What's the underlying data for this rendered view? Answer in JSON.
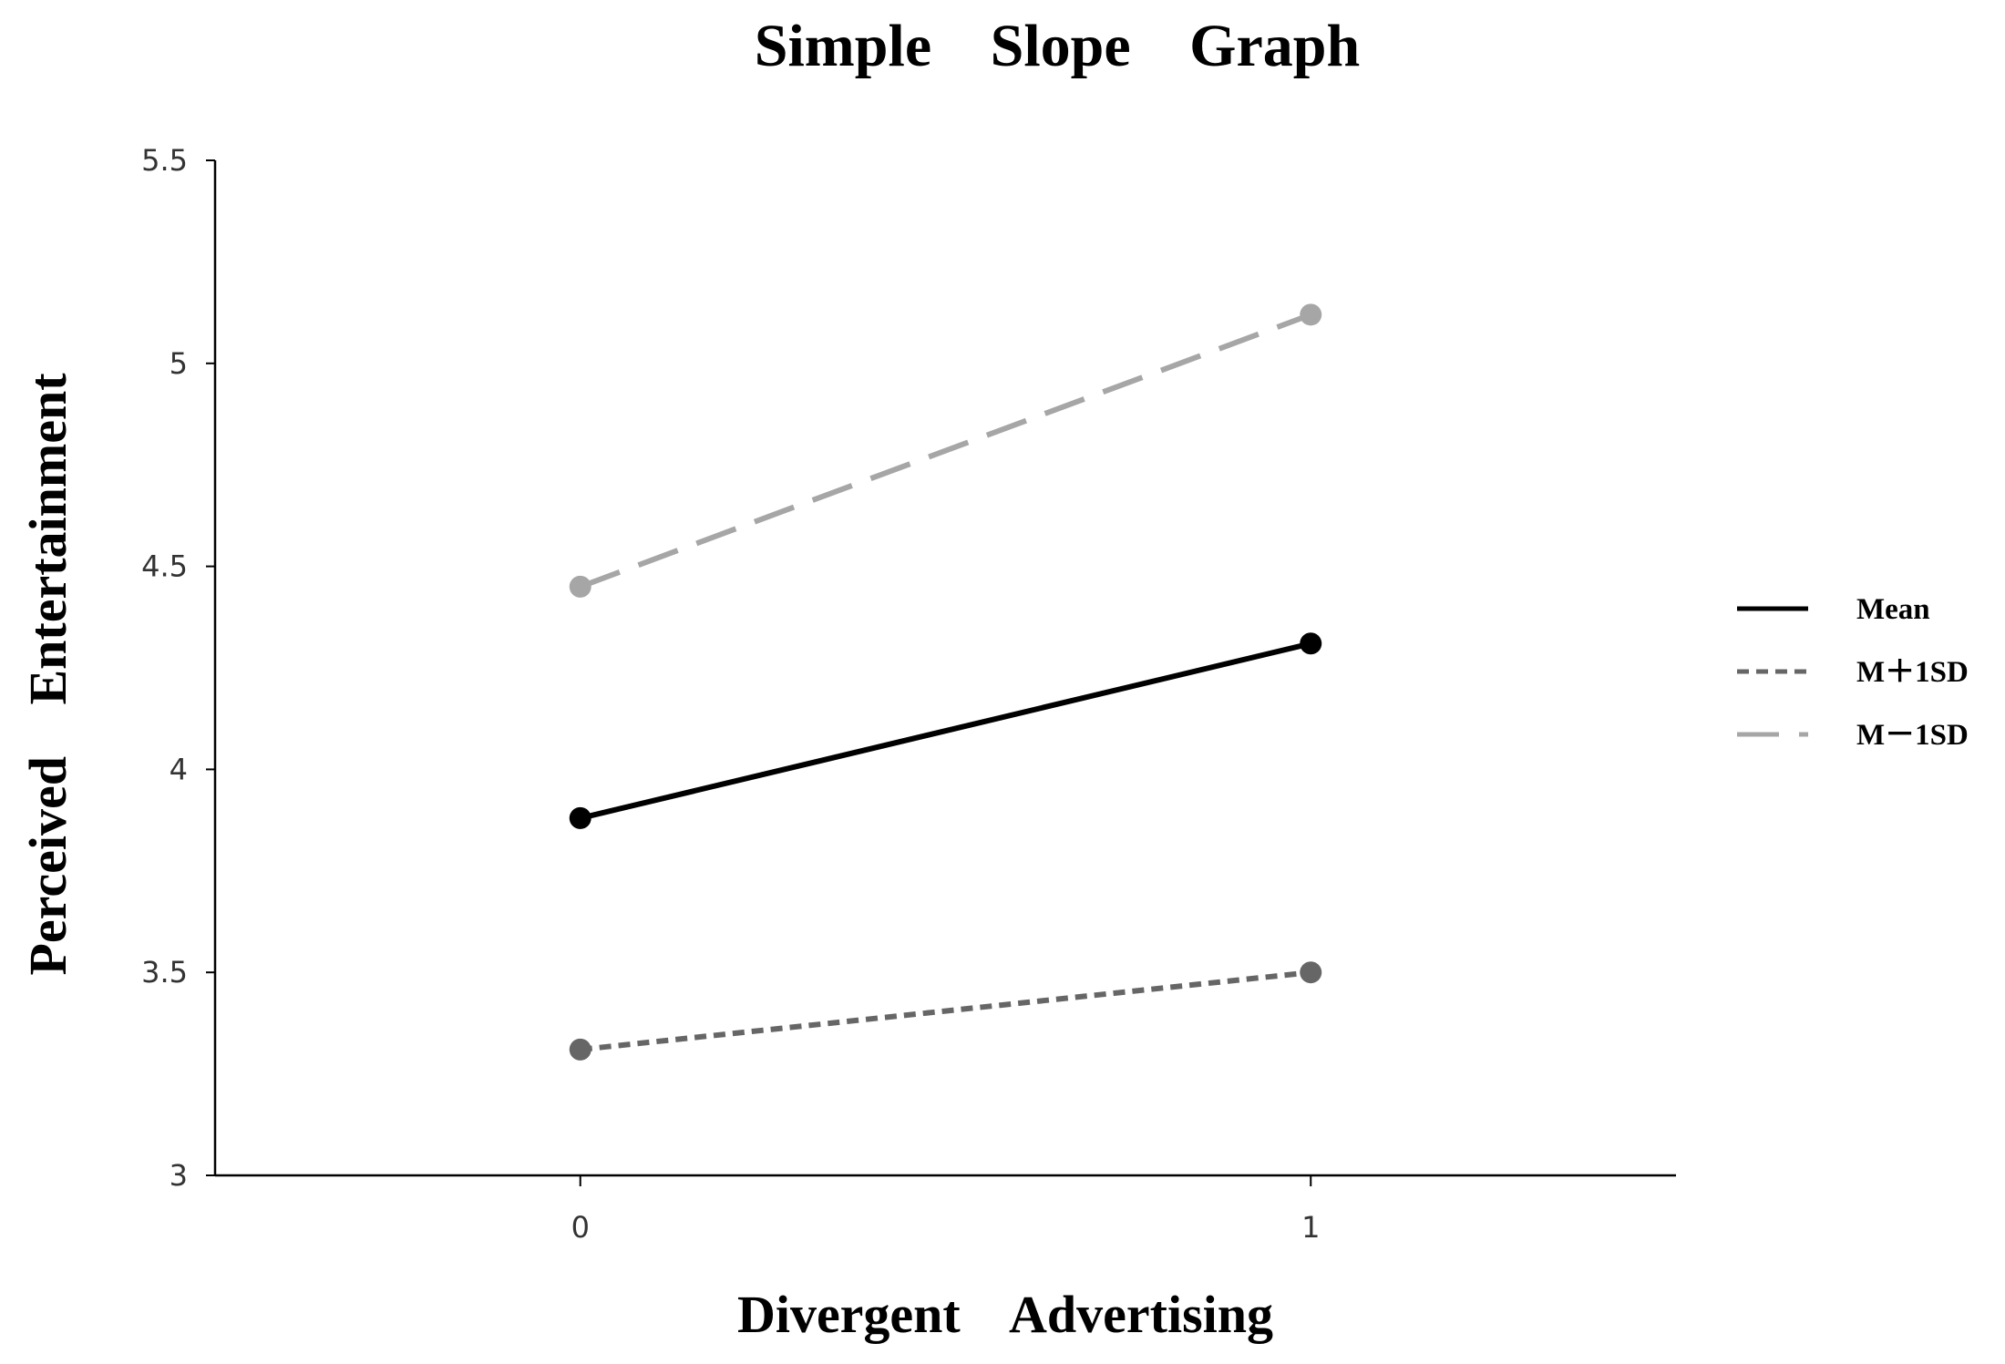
{
  "chart_data": {
    "type": "line",
    "title": "Simple Slope Graph",
    "xlabel": "Divergent Advertising",
    "ylabel": "Perceived Entertainment",
    "x": [
      0,
      1
    ],
    "x_tick_labels": [
      "0",
      "1"
    ],
    "xlim": [
      -0.5,
      1.5
    ],
    "ylim": [
      3,
      5.5
    ],
    "y_ticks": [
      3,
      3.5,
      4,
      4.5,
      5,
      5.5
    ],
    "y_tick_labels": [
      "3",
      "3.5",
      "4",
      "4.5",
      "5",
      "5.5"
    ],
    "grid": false,
    "legend_position": "right",
    "series": [
      {
        "name": "Mean",
        "values": [
          3.88,
          4.31
        ],
        "color": "#000000",
        "dash": "solid"
      },
      {
        "name": "M＋1SD",
        "values": [
          3.31,
          3.5
        ],
        "color": "#666666",
        "dash": "short-dash"
      },
      {
        "name": "M－1SD",
        "values": [
          4.45,
          5.12
        ],
        "color": "#a6a6a6",
        "dash": "long-dash"
      }
    ]
  }
}
